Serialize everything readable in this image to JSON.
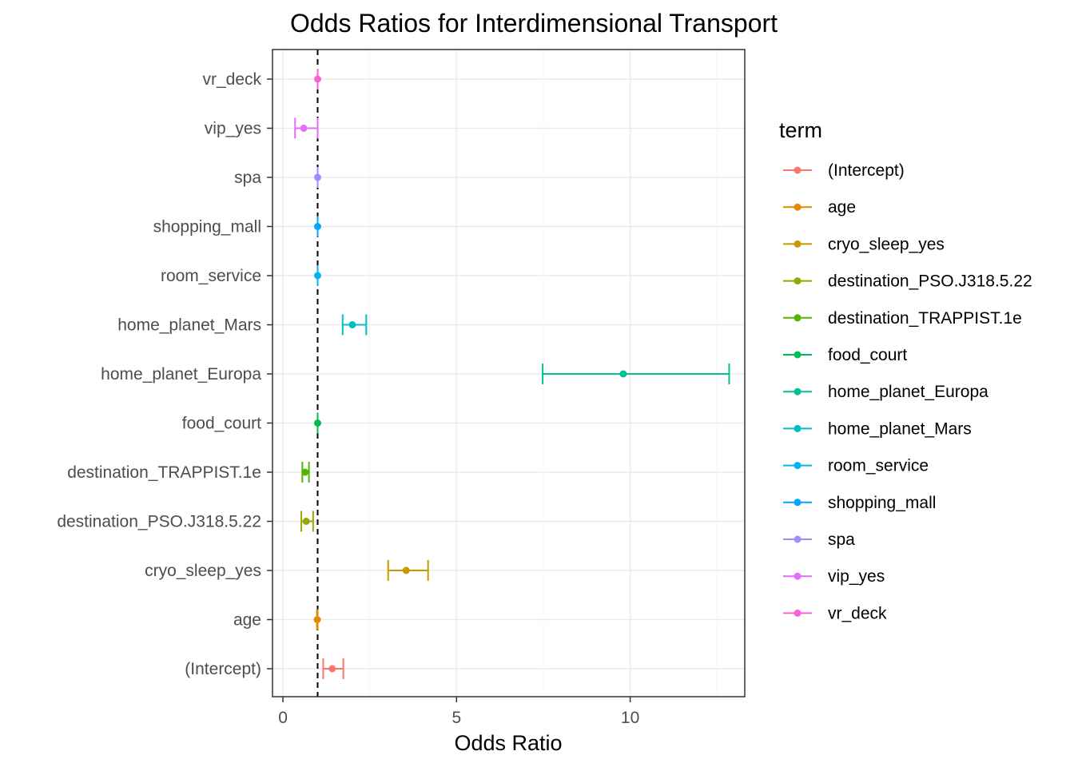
{
  "chart_data": {
    "type": "scatter",
    "title": "Odds Ratios for Interdimensional Transport",
    "xlabel": "Odds Ratio",
    "ylabel": "",
    "xlim": [
      -0.3,
      13.3
    ],
    "x_ticks": [
      0,
      5,
      10
    ],
    "reference_line": 1,
    "grid": true,
    "legend_title": "term",
    "legend_position": "right",
    "categories": [
      "(Intercept)",
      "age",
      "cryo_sleep_yes",
      "destination_PSO.J318.5.22",
      "destination_TRAPPIST.1e",
      "food_court",
      "home_planet_Europa",
      "home_planet_Mars",
      "room_service",
      "shopping_mall",
      "spa",
      "vip_yes",
      "vr_deck"
    ],
    "series": [
      {
        "name": "(Intercept)",
        "estimate": 1.42,
        "conf_low": 1.16,
        "conf_high": 1.74,
        "color": "#F8766D"
      },
      {
        "name": "age",
        "estimate": 0.99,
        "conf_low": 0.98,
        "conf_high": 1.0,
        "color": "#DB8E00"
      },
      {
        "name": "cryo_sleep_yes",
        "estimate": 3.55,
        "conf_low": 3.03,
        "conf_high": 4.18,
        "color": "#AEA200"
      },
      {
        "name": "destination_PSO.J318.5.22",
        "estimate": 0.67,
        "conf_low": 0.53,
        "conf_high": 0.87,
        "color": "#64B200"
      },
      {
        "name": "destination_TRAPPIST.1e",
        "estimate": 0.64,
        "conf_low": 0.56,
        "conf_high": 0.75,
        "color": "#00BD5C"
      },
      {
        "name": "food_court",
        "estimate": 1.0,
        "conf_low": 1.0,
        "conf_high": 1.0,
        "color": "#00C1A7"
      },
      {
        "name": "home_planet_Europa",
        "estimate": 9.8,
        "conf_low": 7.48,
        "conf_high": 12.85,
        "color": "#00BADE"
      },
      {
        "name": "home_planet_Mars",
        "estimate": 2.0,
        "conf_low": 1.72,
        "conf_high": 2.4,
        "color": "#00A6FF"
      },
      {
        "name": "room_service",
        "estimate": 1.0,
        "conf_low": 1.0,
        "conf_high": 1.0,
        "color": "#B385FF"
      },
      {
        "name": "shopping_mall",
        "estimate": 1.0,
        "conf_low": 1.0,
        "conf_high": 1.0,
        "color": "#EF67EB"
      },
      {
        "name": "spa",
        "estimate": 1.0,
        "conf_low": 1.0,
        "conf_high": 1.0,
        "color": "#FF63B6"
      },
      {
        "name": "vip_yes",
        "estimate": 0.6,
        "conf_low": 0.35,
        "conf_high": 1.0,
        "color": "#F8766D"
      },
      {
        "name": "vr_deck",
        "estimate": 1.0,
        "conf_low": 1.0,
        "conf_high": 1.0,
        "color": "#DB8E00"
      }
    ],
    "term_colors": {
      "(Intercept)": "#F8766D",
      "age": "#E38900",
      "cryo_sleep_yes": "#C49A00",
      "destination_PSO.J318.5.22": "#99A800",
      "destination_TRAPPIST.1e": "#53B400",
      "food_court": "#00BC56",
      "home_planet_Europa": "#00C094",
      "home_planet_Mars": "#00BFC4",
      "room_service": "#00B6EB",
      "shopping_mall": "#06A4FF",
      "spa": "#A58AFF",
      "vip_yes": "#DF70F8",
      "vr_deck": "#FB61D7"
    }
  }
}
